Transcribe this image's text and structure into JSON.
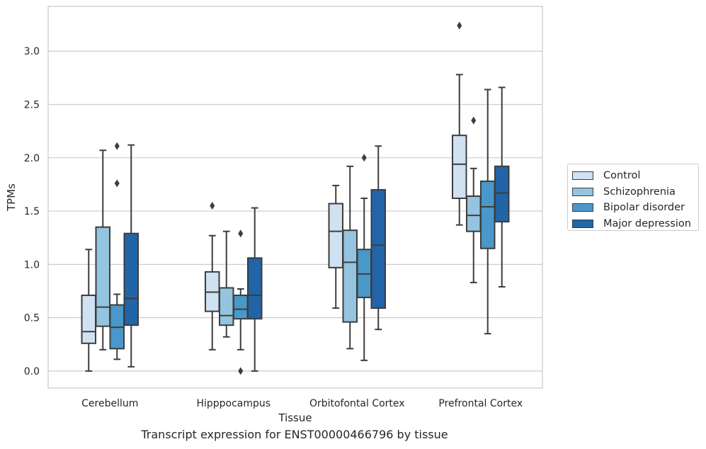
{
  "chart_data": {
    "type": "box",
    "caption": "Transcript expression for ENST00000466796 by tissue",
    "xlabel": "Tissue",
    "ylabel": "TPMs",
    "ylim": [
      -0.16,
      3.42
    ],
    "yticks": [
      "0.0",
      "0.5",
      "1.0",
      "1.5",
      "2.0",
      "2.5",
      "3.0"
    ],
    "grid": "horizontal",
    "legend_position": "right",
    "categories": [
      "Cerebellum",
      "Hipppocampus",
      "Orbitofontal Cortex",
      "Prefrontal Cortex"
    ],
    "series": [
      {
        "name": "Control",
        "color": "#d0e1f2",
        "boxes": [
          {
            "min": 0.0,
            "q1": 0.26,
            "median": 0.37,
            "q3": 0.71,
            "max": 1.14,
            "outliers": []
          },
          {
            "min": 0.2,
            "q1": 0.56,
            "median": 0.74,
            "q3": 0.93,
            "max": 1.27,
            "outliers": [
              1.55
            ]
          },
          {
            "min": 0.59,
            "q1": 0.97,
            "median": 1.31,
            "q3": 1.57,
            "max": 1.74,
            "outliers": []
          },
          {
            "min": 1.37,
            "q1": 1.62,
            "median": 1.94,
            "q3": 2.21,
            "max": 2.78,
            "outliers": [
              3.24
            ]
          }
        ]
      },
      {
        "name": "Schizophrenia",
        "color": "#94c4df",
        "boxes": [
          {
            "min": 0.2,
            "q1": 0.42,
            "median": 0.6,
            "q3": 1.35,
            "max": 2.07,
            "outliers": []
          },
          {
            "min": 0.32,
            "q1": 0.43,
            "median": 0.52,
            "q3": 0.78,
            "max": 1.31,
            "outliers": []
          },
          {
            "min": 0.21,
            "q1": 0.46,
            "median": 1.02,
            "q3": 1.32,
            "max": 1.92,
            "outliers": []
          },
          {
            "min": 0.83,
            "q1": 1.31,
            "median": 1.46,
            "q3": 1.64,
            "max": 1.9,
            "outliers": [
              2.35
            ]
          }
        ]
      },
      {
        "name": "Bipolar disorder",
        "color": "#4a98c9",
        "boxes": [
          {
            "min": 0.11,
            "q1": 0.21,
            "median": 0.41,
            "q3": 0.62,
            "max": 0.72,
            "outliers": [
              1.76,
              2.11
            ]
          },
          {
            "min": 0.2,
            "q1": 0.49,
            "median": 0.58,
            "q3": 0.71,
            "max": 0.77,
            "outliers": [
              1.29,
              0.0
            ]
          },
          {
            "min": 0.1,
            "q1": 0.69,
            "median": 0.91,
            "q3": 1.14,
            "max": 1.62,
            "outliers": [
              2.0
            ]
          },
          {
            "min": 0.35,
            "q1": 1.15,
            "median": 1.54,
            "q3": 1.78,
            "max": 2.64,
            "outliers": []
          }
        ]
      },
      {
        "name": "Major depression",
        "color": "#2264a8",
        "boxes": [
          {
            "min": 0.04,
            "q1": 0.43,
            "median": 0.68,
            "q3": 1.29,
            "max": 2.12,
            "outliers": []
          },
          {
            "min": 0.0,
            "q1": 0.49,
            "median": 0.71,
            "q3": 1.06,
            "max": 1.53,
            "outliers": []
          },
          {
            "min": 0.39,
            "q1": 0.59,
            "median": 1.18,
            "q3": 1.7,
            "max": 2.11,
            "outliers": []
          },
          {
            "min": 0.79,
            "q1": 1.4,
            "median": 1.67,
            "q3": 1.92,
            "max": 2.66,
            "outliers": []
          }
        ]
      }
    ]
  }
}
